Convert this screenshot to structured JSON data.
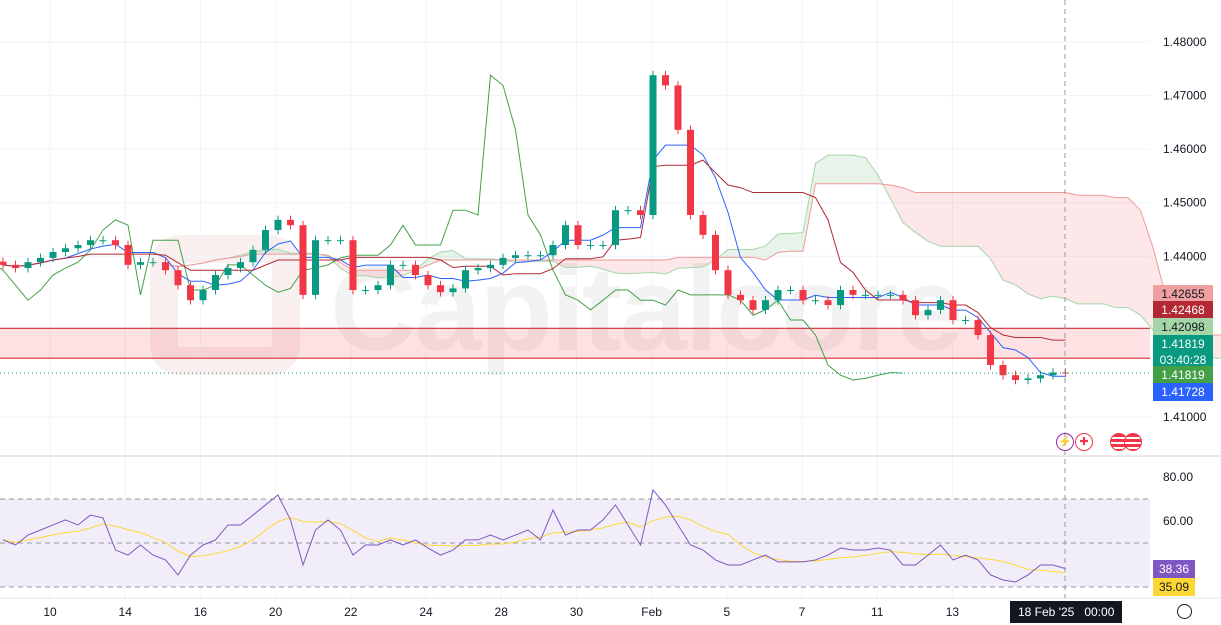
{
  "chart_data": {
    "type": "candlestick",
    "title": "",
    "price_axis": {
      "ticks": [
        "1.48000",
        "1.47000",
        "1.46000",
        "1.45000",
        "1.44000",
        "1.41000"
      ],
      "tick_values": [
        1.48,
        1.47,
        1.46,
        1.45,
        1.44,
        1.41
      ],
      "ylim": [
        1.4035,
        1.4815
      ]
    },
    "time_axis": {
      "ticks": [
        "10",
        "14",
        "16",
        "20",
        "22",
        "24",
        "28",
        "30",
        "Feb",
        "5",
        "7",
        "11",
        "13"
      ],
      "tick_candle_index": [
        4,
        10,
        16,
        22,
        28,
        34,
        40,
        46,
        52,
        58,
        64,
        70,
        76
      ]
    },
    "closes": [
      1.4384,
      1.4378,
      1.4389,
      1.4397,
      1.4408,
      1.4415,
      1.4421,
      1.443,
      1.443,
      1.4421,
      1.4384,
      1.4389,
      1.4389,
      1.4374,
      1.4346,
      1.4318,
      1.4337,
      1.4365,
      1.4378,
      1.4389,
      1.4412,
      1.4449,
      1.4468,
      1.4458,
      1.4328,
      1.443,
      1.443,
      1.443,
      1.4337,
      1.4337,
      1.4346,
      1.4384,
      1.4384,
      1.4365,
      1.4346,
      1.4333,
      1.434,
      1.4374,
      1.4378,
      1.4384,
      1.4397,
      1.4402,
      1.4402,
      1.4402,
      1.4421,
      1.4458,
      1.4421,
      1.4421,
      1.4421,
      1.4486,
      1.4486,
      1.4477,
      1.4738,
      1.4719,
      1.4636,
      1.4477,
      1.444,
      1.4374,
      1.4328,
      1.4318,
      1.43,
      1.4318,
      1.4337,
      1.4337,
      1.4318,
      1.4318,
      1.4309,
      1.4337,
      1.4328,
      1.4328,
      1.4328,
      1.4328,
      1.4318,
      1.429,
      1.43,
      1.4318,
      1.4281,
      1.4281,
      1.4253,
      1.4197,
      1.4178,
      1.4169,
      1.4172,
      1.4178,
      1.4183,
      1.4182
    ],
    "rsi": {
      "label_value": "38.36",
      "ma_label_value": "35.09",
      "levels": [
        70,
        50,
        30
      ],
      "ticks": [
        "80.00",
        "60.00"
      ],
      "tick_values": [
        80,
        60
      ],
      "ylim": [
        28,
        82
      ],
      "values": [
        51.4,
        49.1,
        53.6,
        55.9,
        58.2,
        60.5,
        58.2,
        62.7,
        61.4,
        46.8,
        44.5,
        49.1,
        44.5,
        42.3,
        35.5,
        44.5,
        49.1,
        51.4,
        58.2,
        58.2,
        62.7,
        67.3,
        71.8,
        60.5,
        40,
        55.9,
        60.5,
        55.9,
        44.5,
        49.1,
        49.1,
        51.4,
        49.1,
        51.4,
        47.7,
        44.5,
        46.8,
        51.4,
        51.4,
        53.6,
        51.4,
        53.6,
        55.9,
        51.4,
        65,
        53.6,
        55.9,
        55.9,
        60.5,
        67.3,
        58.2,
        49.1,
        74.1,
        67.3,
        58.2,
        49.1,
        46.8,
        42.3,
        40,
        40,
        42.3,
        44.5,
        41.4,
        41.4,
        41.4,
        42.3,
        44.5,
        47.7,
        46.8,
        46.8,
        47.7,
        46.8,
        40,
        40,
        44.5,
        49.1,
        42.3,
        44.5,
        42.3,
        35.5,
        33.2,
        32.3,
        35.5,
        40,
        40,
        38.36
      ]
    },
    "price_tags": [
      {
        "value": "1.42655",
        "bg": "#f0a0a0",
        "fg": "#131722"
      },
      {
        "value": "1.42468",
        "bg": "#b22833",
        "fg": "#ffffff"
      },
      {
        "value": "1.42098",
        "bg": "#a5d6a7",
        "fg": "#131722"
      },
      {
        "value": "1.41819",
        "sub": "03:40:28",
        "bg": "#089981",
        "fg": "#ffffff"
      },
      {
        "value": "1.41819",
        "bg": "#43a047",
        "fg": "#ffffff"
      },
      {
        "value": "1.41728",
        "bg": "#2962ff",
        "fg": "#ffffff"
      }
    ],
    "zone": {
      "top": 1.42655,
      "bottom": 1.42098
    },
    "current_price": 1.41819,
    "crosshair_time": "18 Feb '25   00:00",
    "colors": {
      "up": "#089981",
      "down": "#f23645",
      "tenkan": "#2962ff",
      "kijun": "#b22833",
      "chikou": "#43a047",
      "rsi": "#7e57c2",
      "rsi_ma": "#fdd835"
    }
  },
  "watermark": "Capitalcore"
}
